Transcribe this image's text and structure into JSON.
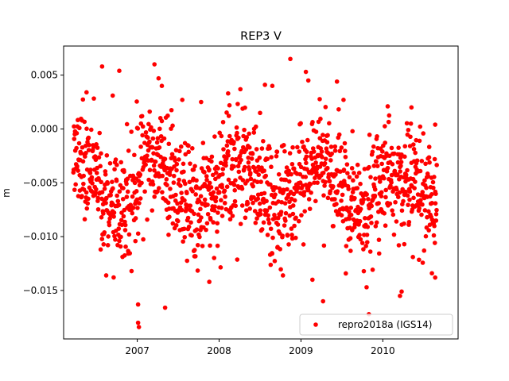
{
  "chart_data": {
    "type": "scatter",
    "title": "REP3 V",
    "xlabel": "",
    "ylabel": "m",
    "xlim": [
      2006.1,
      2010.92
    ],
    "ylim": [
      -0.0195,
      0.0077
    ],
    "xticks": [
      2007,
      2008,
      2009,
      2010
    ],
    "xtick_labels": [
      "2007",
      "2008",
      "2009",
      "2010"
    ],
    "yticks": [
      0.005,
      0.0,
      -0.005,
      -0.01,
      -0.015
    ],
    "ytick_labels": [
      "0.005",
      "0.000",
      "−0.005",
      "−0.010",
      "−0.015"
    ],
    "grid": false,
    "legend_position": "lower-right",
    "series": [
      {
        "name": "repro2018a (IGS14)",
        "color": "#ff0000",
        "marker": "circle",
        "generated_daily_start_year": 2006.22,
        "generated_daily_end_year": 2010.66,
        "generated_daily_count": 1350,
        "points": [
          [
            2006.57,
            0.0058
          ],
          [
            2006.78,
            0.0054
          ],
          [
            2006.7,
            0.0031
          ],
          [
            2006.38,
            0.0034
          ],
          [
            2007.21,
            0.006
          ],
          [
            2007.26,
            0.0047
          ],
          [
            2007.3,
            0.004
          ],
          [
            2007.55,
            0.0027
          ],
          [
            2007.78,
            0.0025
          ],
          [
            2008.11,
            0.0033
          ],
          [
            2008.56,
            0.0041
          ],
          [
            2008.65,
            0.004
          ],
          [
            2008.87,
            0.0065
          ],
          [
            2009.06,
            0.0053
          ],
          [
            2009.09,
            0.0045
          ],
          [
            2009.44,
            0.0044
          ],
          [
            2009.52,
            0.0027
          ],
          [
            2010.06,
            0.0021
          ],
          [
            2010.35,
            0.002
          ],
          [
            2006.62,
            -0.0136
          ],
          [
            2006.93,
            -0.0132
          ],
          [
            2007.01,
            -0.0163
          ],
          [
            2007.01,
            -0.018
          ],
          [
            2007.02,
            -0.0184
          ],
          [
            2007.34,
            -0.0166
          ],
          [
            2007.88,
            -0.0142
          ],
          [
            2008.78,
            -0.0136
          ],
          [
            2009.14,
            -0.014
          ],
          [
            2009.27,
            -0.016
          ],
          [
            2009.83,
            -0.0172
          ],
          [
            2010.21,
            -0.0155
          ],
          [
            2010.23,
            -0.0151
          ],
          [
            2010.6,
            -0.0134
          ],
          [
            2010.64,
            -0.0138
          ],
          [
            2010.64,
            0.0004
          ]
        ]
      }
    ]
  }
}
